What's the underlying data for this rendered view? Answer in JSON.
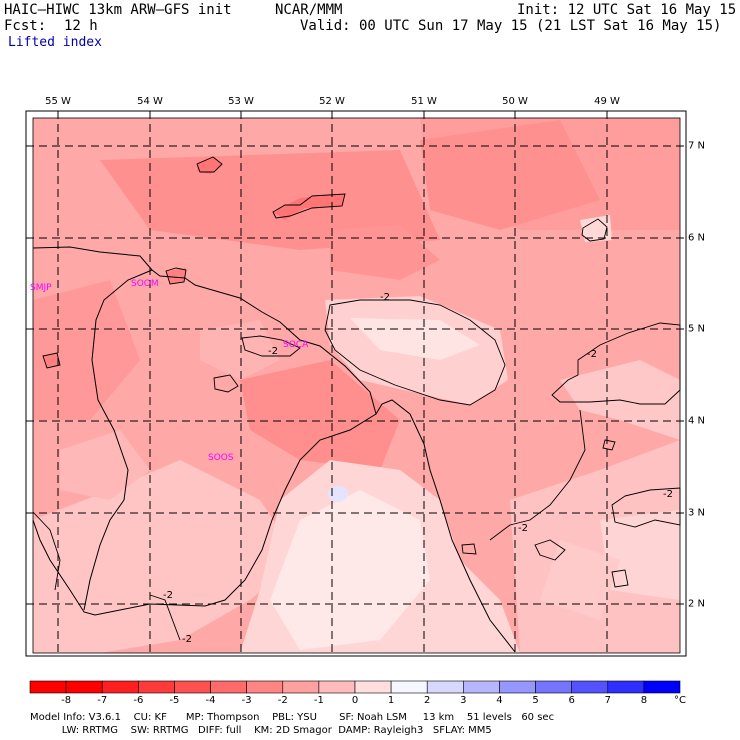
{
  "header": {
    "model": "HAIC–HIWC 13km ARW–GFS init",
    "org": "NCAR/MMM",
    "init": "Init: 12 UTC Sat 16 May 15",
    "fcst_label": "Fcst:",
    "fcst_value": "12 h",
    "valid": "Valid: 00 UTC Sun 17 May 15 (21 LST Sat 16 May 15)",
    "field": "Lifted index"
  },
  "map": {
    "lon_labels": [
      "55 W",
      "54 W",
      "53 W",
      "52 W",
      "51 W",
      "50 W",
      "49 W"
    ],
    "lat_labels": [
      "7 N",
      "6 N",
      "5 N",
      "4 N",
      "3 N",
      "2 N"
    ],
    "stations": [
      "SMJP",
      "SOOM",
      "SOCA",
      "SOOS"
    ],
    "contour_labels": [
      "-2",
      "-2",
      "-2",
      "-2",
      "-2",
      "-2",
      "-2"
    ]
  },
  "colorbar": {
    "ticks": [
      "-8",
      "-7",
      "-6",
      "-5",
      "-4",
      "-3",
      "-2",
      "-1",
      "0",
      "1",
      "2",
      "3",
      "4",
      "5",
      "6",
      "7",
      "8"
    ],
    "unit": "°C",
    "colors": [
      "#ff0000",
      "#ff1f1f",
      "#ff3a3a",
      "#ff5050",
      "#ff6a6a",
      "#ff8484",
      "#ffa0a0",
      "#ffbcbc",
      "#ffdede",
      "#f6f6ff",
      "#d8d8ff",
      "#b6b6ff",
      "#9696ff",
      "#7474ff",
      "#5252ff",
      "#2e2eff",
      "#0000ff"
    ]
  },
  "footer": {
    "line1": "Model Info: V3.6.1    CU: KF      MP: Thompson    PBL: YSU       SF: Noah LSM     13 km    51 levels   60 sec",
    "line2": "          LW: RRTMG    SW: RRTMG   DIFF: full    KM: 2D Smagor  DAMP: Rayleigh3   SFLAY: MM5"
  }
}
